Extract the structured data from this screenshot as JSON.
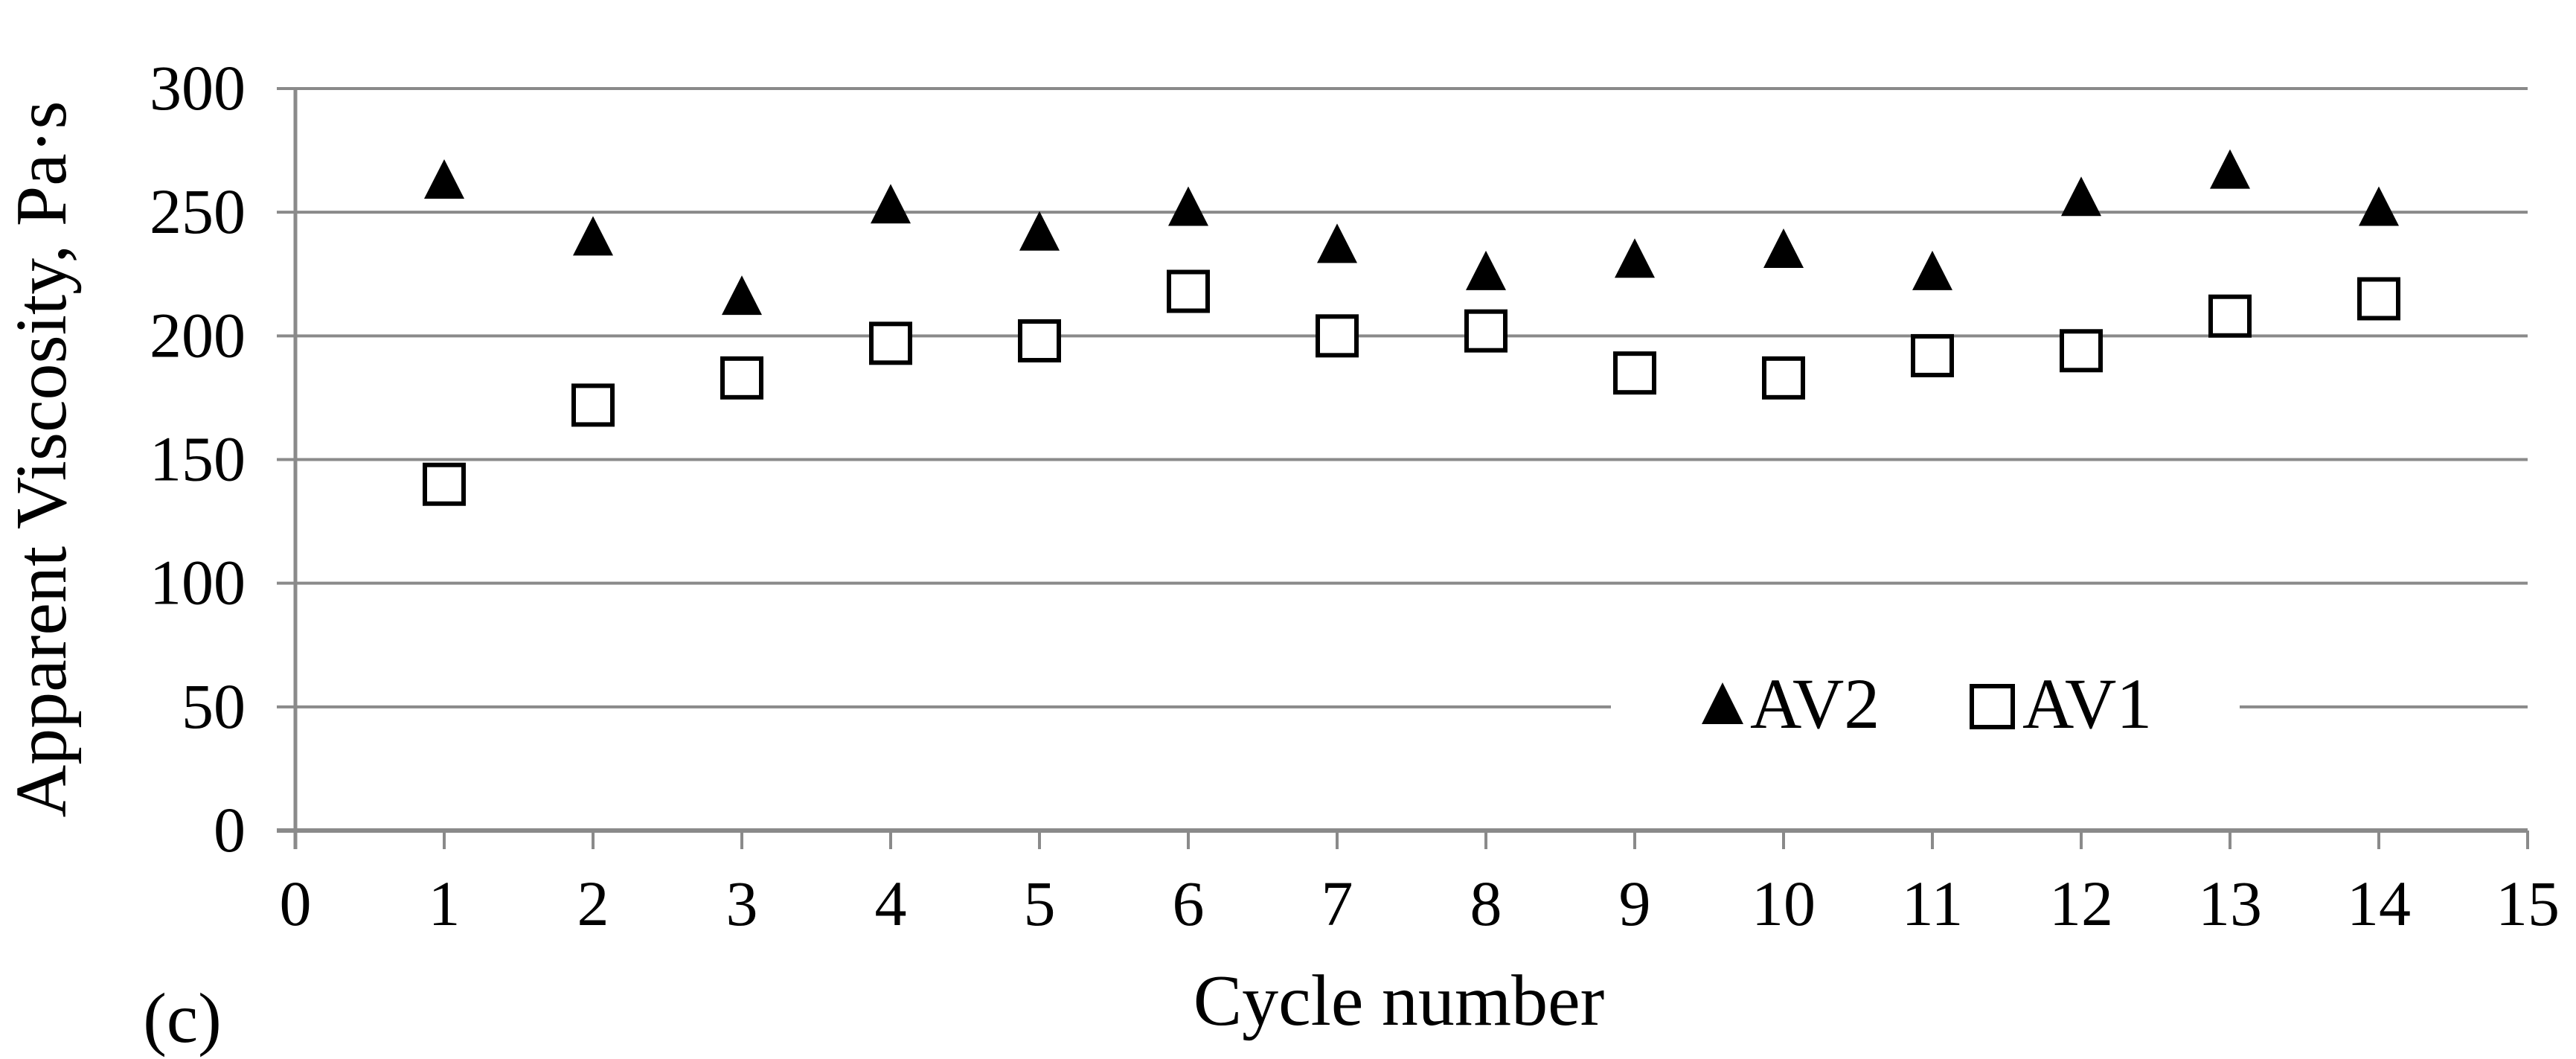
{
  "chart_data": {
    "type": "scatter",
    "panel_label": "(c)",
    "xlabel": "Cycle number",
    "ylabel": "Apparent Viscosity, Pa·s",
    "xlim": [
      0,
      15
    ],
    "ylim": [
      0,
      300
    ],
    "xticks": [
      0,
      1,
      2,
      3,
      4,
      5,
      6,
      7,
      8,
      9,
      10,
      11,
      12,
      13,
      14,
      15
    ],
    "yticks": [
      0,
      50,
      100,
      150,
      200,
      250,
      300
    ],
    "grid": "horizontal",
    "legend_position": "inside-lower-right",
    "x": [
      1,
      2,
      3,
      4,
      5,
      6,
      7,
      8,
      9,
      10,
      11,
      12,
      13,
      14
    ],
    "series": [
      {
        "name": "AV2",
        "marker": "filled-triangle",
        "values": [
          263,
          240,
          216,
          253,
          242,
          252,
          237,
          226,
          231,
          235,
          226,
          256,
          267,
          252
        ]
      },
      {
        "name": "AV1",
        "marker": "open-square",
        "values": [
          140,
          172,
          183,
          197,
          198,
          218,
          200,
          202,
          185,
          183,
          192,
          194,
          208,
          215
        ]
      }
    ],
    "colors": {
      "marker": "#000000",
      "grid": "#8a8a8a",
      "axis": "#8a8a8a",
      "text": "#000000",
      "background": "#ffffff"
    }
  }
}
